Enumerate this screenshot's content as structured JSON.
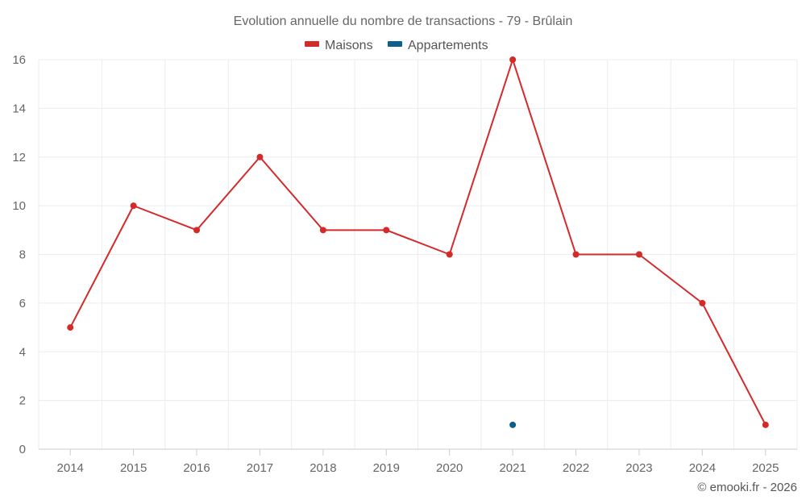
{
  "chart_data": {
    "type": "line",
    "title": "Evolution annuelle du nombre de transactions - 79 - Brûlain",
    "categories": [
      "2014",
      "2015",
      "2016",
      "2017",
      "2018",
      "2019",
      "2020",
      "2021",
      "2022",
      "2023",
      "2024",
      "2025"
    ],
    "series": [
      {
        "name": "Maisons",
        "color": "#d32a2a",
        "values": [
          5,
          10,
          9,
          12,
          9,
          9,
          8,
          16,
          8,
          8,
          6,
          1
        ]
      },
      {
        "name": "Appartements",
        "color": "#0f5f8c",
        "values": [
          null,
          null,
          null,
          null,
          null,
          null,
          null,
          1,
          null,
          null,
          null,
          null
        ]
      }
    ],
    "ylim": [
      0,
      16
    ],
    "yticks": [
      0,
      2,
      4,
      6,
      8,
      10,
      12,
      14,
      16
    ],
    "grid": true,
    "legend": "top-center",
    "xlabel": "",
    "ylabel": ""
  },
  "credit": "© emooki.fr - 2026"
}
